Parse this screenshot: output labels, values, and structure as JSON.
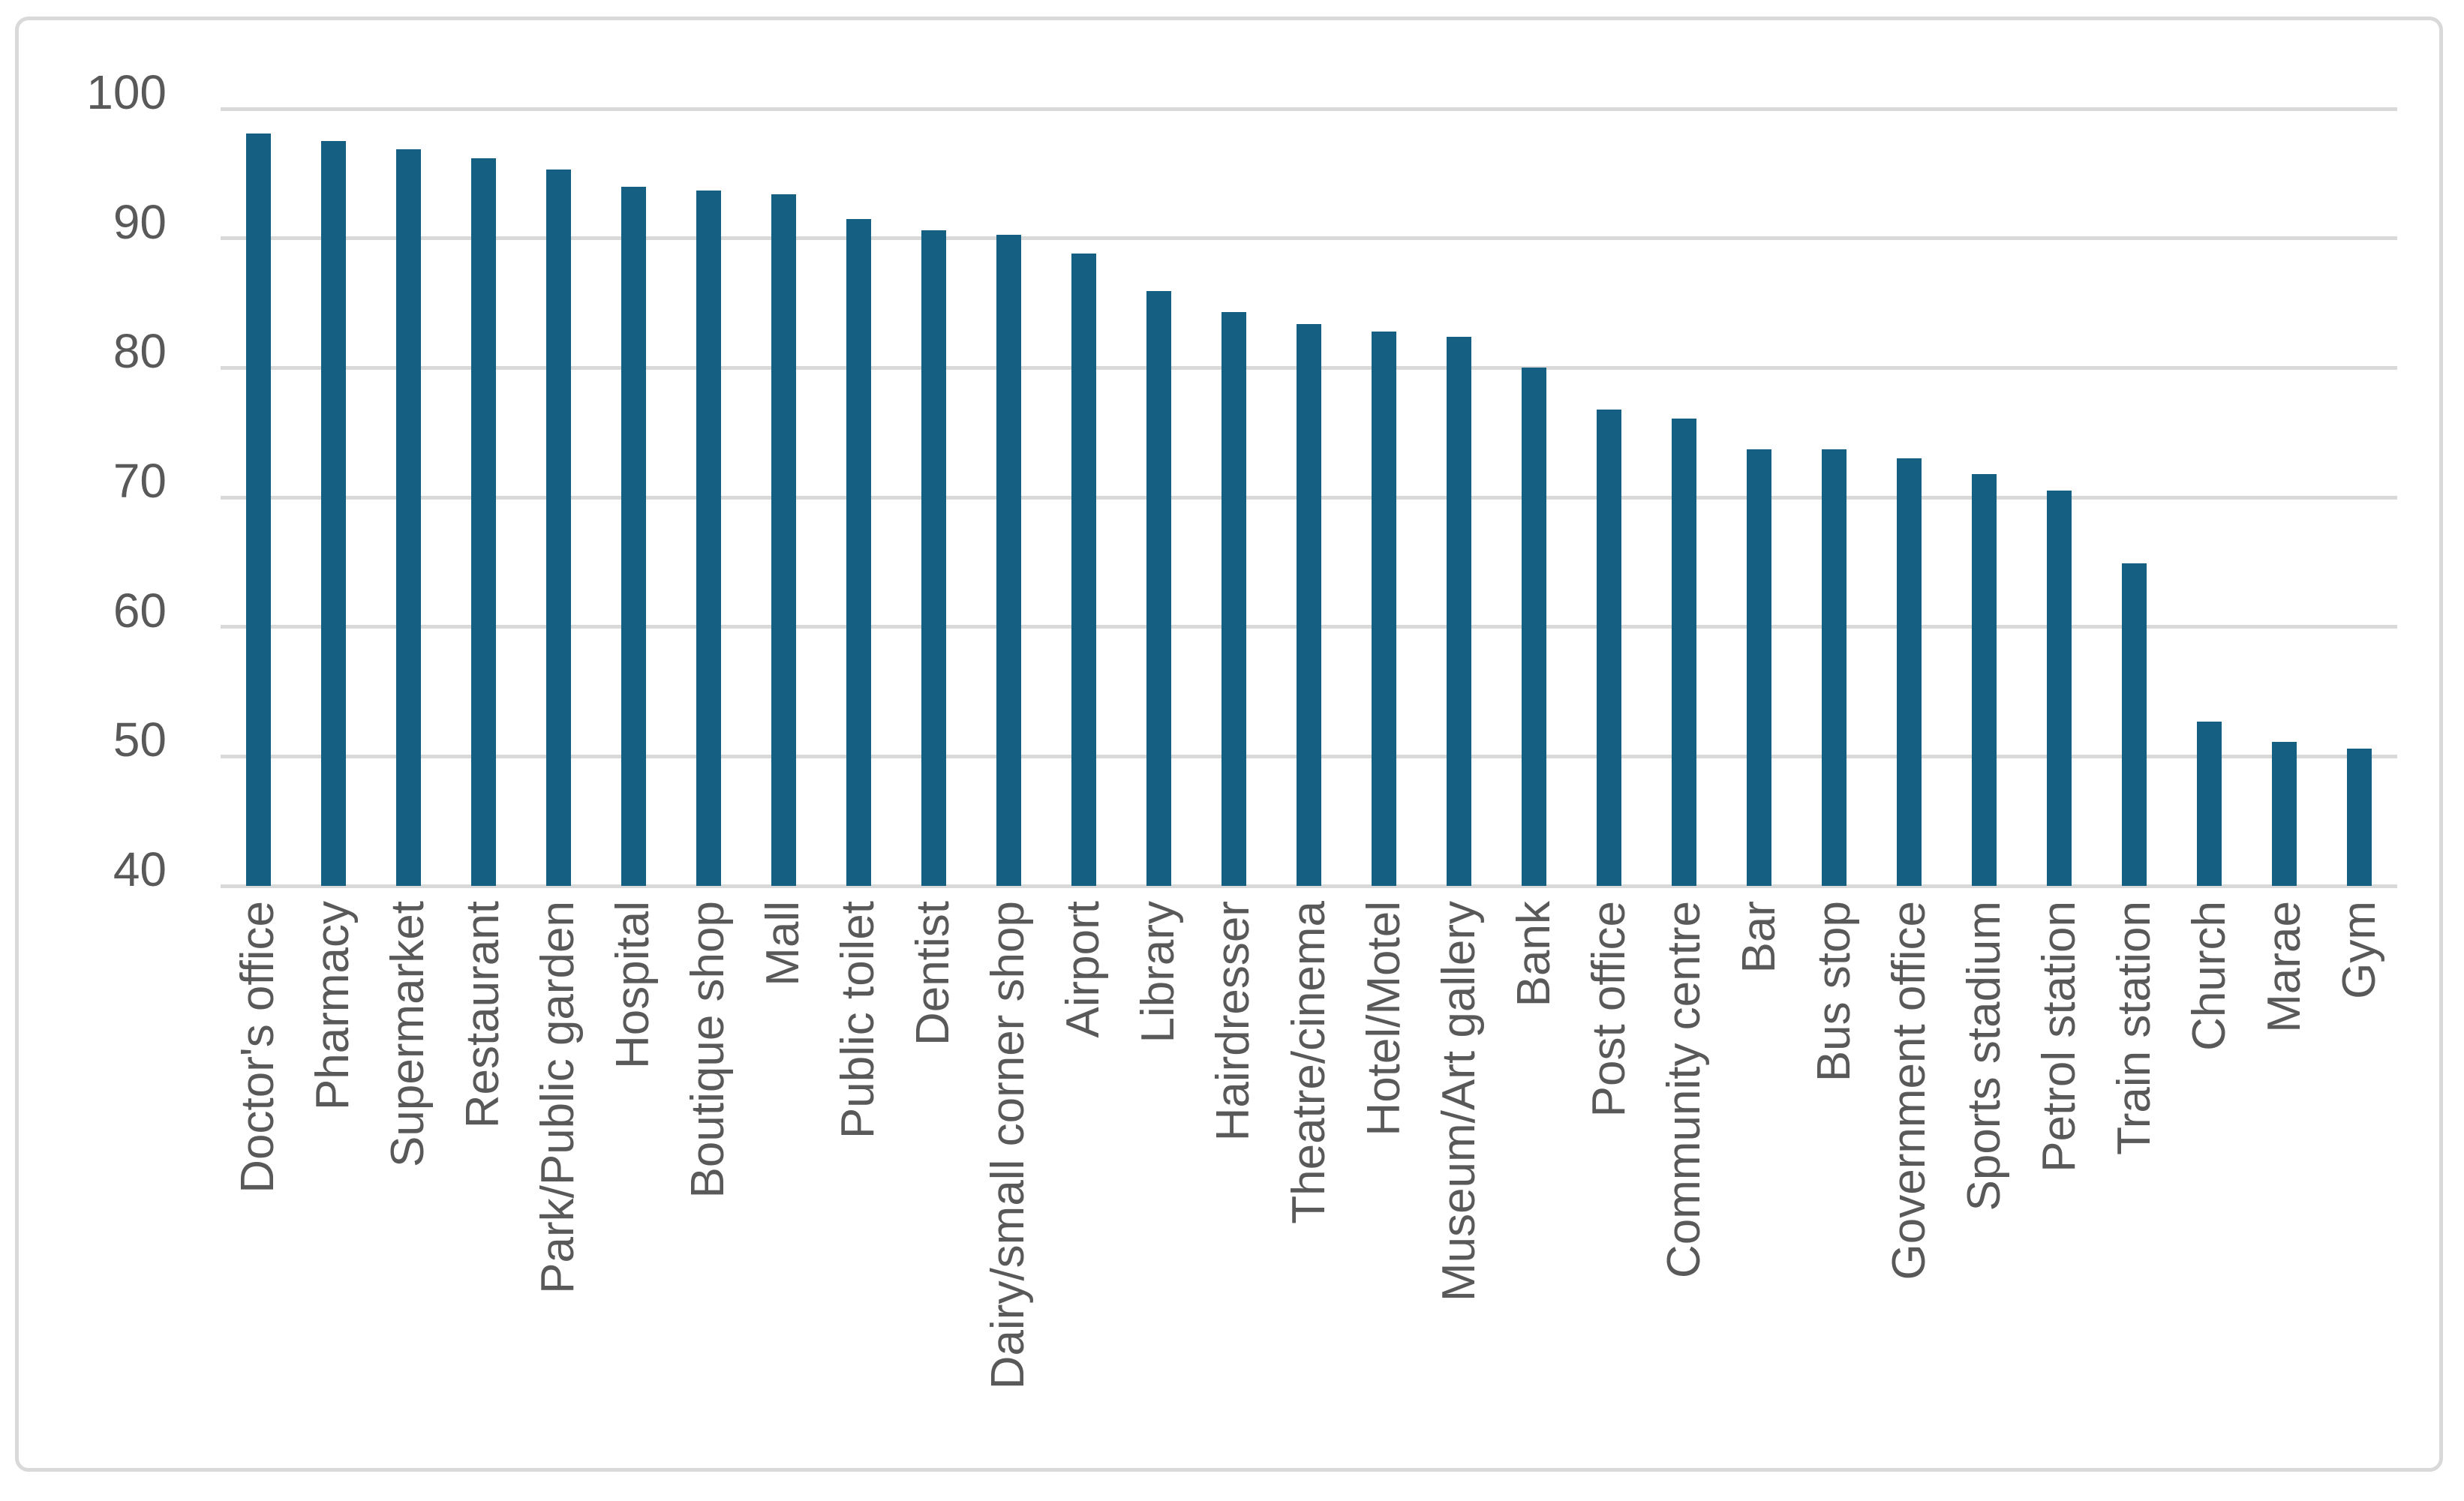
{
  "chart_data": {
    "type": "bar",
    "title": "",
    "xlabel": "",
    "ylabel": "",
    "categories": [
      "Doctor's office",
      "Pharmacy",
      "Supermarket",
      "Restaurant",
      "Park/Public garden",
      "Hospital",
      "Boutique shop",
      "Mall",
      "Public toilet",
      "Dentist",
      "Dairy/small corner shop",
      "Airport",
      "Library",
      "Hairdresser",
      "Theatre/cinema",
      "Hotel/Motel",
      "Museum/Art gallery",
      "Bank",
      "Post office",
      "Community centre",
      "Bar",
      "Bus stop",
      "Government office",
      "Sports stadium",
      "Petrol station",
      "Train station",
      "Church",
      "Marae",
      "Gym"
    ],
    "values": [
      98.1,
      97.5,
      96.9,
      96.2,
      95.3,
      94.0,
      93.7,
      93.4,
      91.5,
      90.6,
      90.3,
      88.8,
      85.9,
      84.3,
      83.4,
      82.8,
      82.4,
      80.0,
      76.8,
      76.1,
      73.7,
      73.7,
      73.0,
      71.8,
      70.5,
      64.9,
      52.7,
      51.1,
      50.6
    ],
    "ylim": [
      40,
      100
    ],
    "y_ticks": [
      40,
      50,
      60,
      70,
      80,
      90,
      100
    ],
    "grid": true,
    "legend": false,
    "colors": {
      "bar": "#156082",
      "gridline": "#D9D9D9",
      "frame_border": "#D9D9D9",
      "tick_label": "#595959",
      "background": "#ffffff"
    }
  }
}
